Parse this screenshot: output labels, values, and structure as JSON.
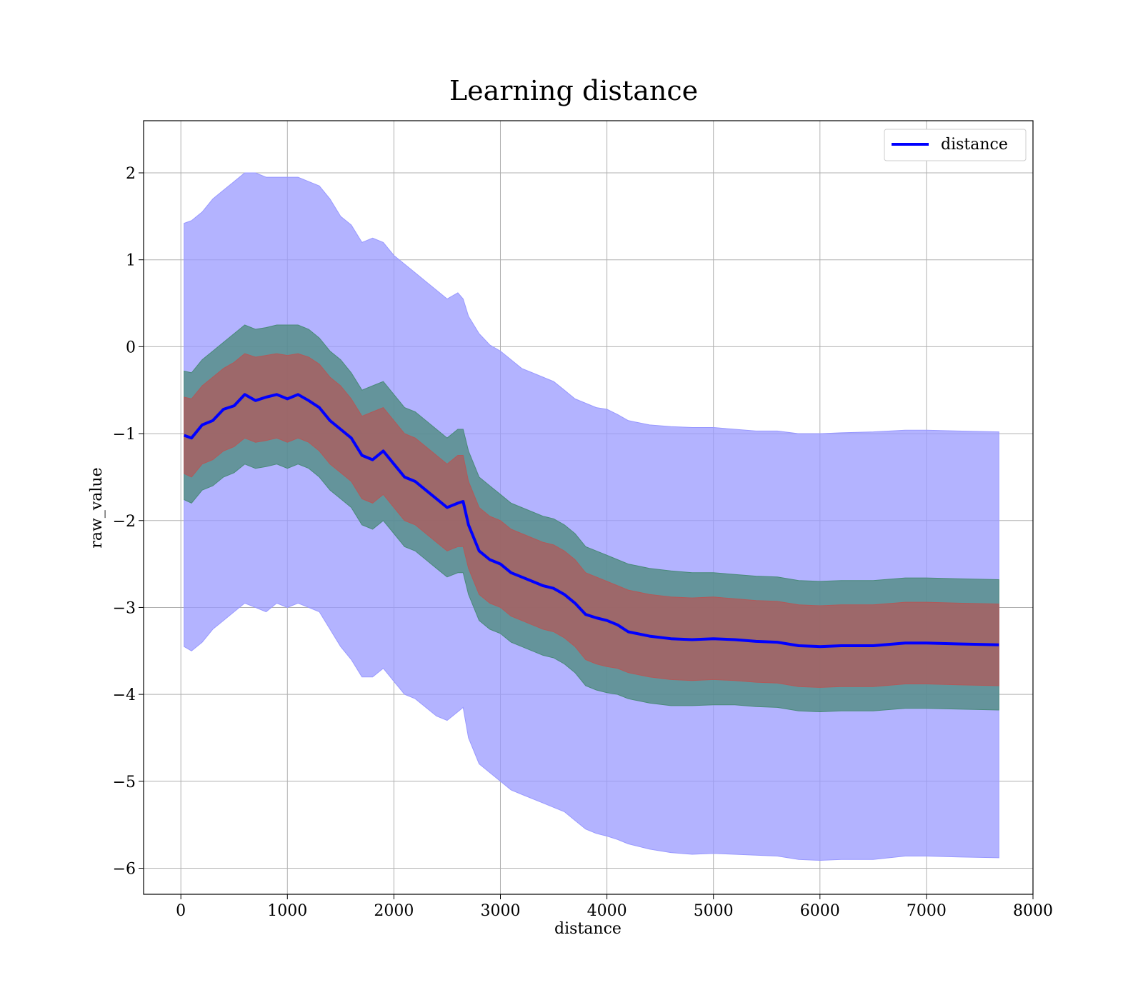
{
  "chart_data": {
    "type": "line",
    "title": "Learning distance",
    "xlabel": "distance",
    "ylabel": "raw_value",
    "xlim": [
      -350,
      8000
    ],
    "ylim": [
      -6.3,
      2.6
    ],
    "xticks": [
      0,
      1000,
      2000,
      3000,
      4000,
      5000,
      6000,
      7000,
      8000
    ],
    "xtick_labels": [
      "0",
      "1000",
      "2000",
      "3000",
      "4000",
      "5000",
      "6000",
      "7000",
      "8000"
    ],
    "yticks": [
      2,
      1,
      0,
      -1,
      -2,
      -3,
      -4,
      -5,
      -6
    ],
    "ytick_labels": [
      "2",
      "1",
      "0",
      "−1",
      "−2",
      "−3",
      "−4",
      "−5",
      "−6"
    ],
    "grid": true,
    "legend": {
      "position": "top-right",
      "entries": [
        {
          "label": "distance",
          "color": "#0000ff"
        }
      ]
    },
    "colors": {
      "line": "#0000ff",
      "outer_band": "#9999ff",
      "middle_band": "#4a8a7a",
      "inner_band": "#b05a5a"
    },
    "series": [
      {
        "name": "distance",
        "x": [
          30,
          100,
          200,
          300,
          400,
          500,
          600,
          700,
          800,
          900,
          1000,
          1100,
          1200,
          1300,
          1400,
          1500,
          1600,
          1700,
          1800,
          1900,
          2000,
          2100,
          2200,
          2300,
          2400,
          2500,
          2600,
          2650,
          2700,
          2800,
          2900,
          3000,
          3100,
          3200,
          3300,
          3400,
          3500,
          3600,
          3700,
          3800,
          3900,
          4000,
          4100,
          4200,
          4400,
          4600,
          4800,
          5000,
          5200,
          5400,
          5600,
          5800,
          6000,
          6200,
          6500,
          6800,
          7000,
          7300,
          7680
        ],
        "y": [
          -1.02,
          -1.05,
          -0.9,
          -0.85,
          -0.72,
          -0.68,
          -0.55,
          -0.62,
          -0.58,
          -0.55,
          -0.6,
          -0.55,
          -0.62,
          -0.7,
          -0.85,
          -0.95,
          -1.05,
          -1.25,
          -1.3,
          -1.2,
          -1.35,
          -1.5,
          -1.55,
          -1.65,
          -1.75,
          -1.85,
          -1.8,
          -1.78,
          -2.05,
          -2.35,
          -2.45,
          -2.5,
          -2.6,
          -2.65,
          -2.7,
          -2.75,
          -2.78,
          -2.85,
          -2.95,
          -3.08,
          -3.12,
          -3.15,
          -3.2,
          -3.28,
          -3.33,
          -3.36,
          -3.37,
          -3.36,
          -3.37,
          -3.39,
          -3.4,
          -3.44,
          -3.45,
          -3.44,
          -3.44,
          -3.41,
          -3.41,
          -3.42,
          -3.43
        ]
      }
    ],
    "bands": [
      {
        "level": "outer",
        "x": [
          30,
          100,
          200,
          300,
          400,
          500,
          600,
          700,
          800,
          900,
          1000,
          1100,
          1200,
          1300,
          1400,
          1500,
          1600,
          1700,
          1800,
          1900,
          2000,
          2100,
          2200,
          2300,
          2400,
          2500,
          2600,
          2650,
          2700,
          2800,
          2900,
          3000,
          3100,
          3200,
          3300,
          3400,
          3500,
          3600,
          3700,
          3800,
          3900,
          4000,
          4100,
          4200,
          4400,
          4600,
          4800,
          5000,
          5200,
          5400,
          5600,
          5800,
          6000,
          6200,
          6500,
          6800,
          7000,
          7300,
          7680
        ],
        "upper": [
          1.42,
          1.45,
          1.55,
          1.7,
          1.8,
          1.9,
          2.0,
          2.0,
          1.95,
          1.95,
          1.95,
          1.95,
          1.9,
          1.85,
          1.7,
          1.5,
          1.4,
          1.2,
          1.25,
          1.2,
          1.05,
          0.95,
          0.85,
          0.75,
          0.65,
          0.55,
          0.62,
          0.55,
          0.35,
          0.15,
          0.02,
          -0.05,
          -0.15,
          -0.25,
          -0.3,
          -0.35,
          -0.4,
          -0.5,
          -0.6,
          -0.65,
          -0.7,
          -0.72,
          -0.78,
          -0.85,
          -0.9,
          -0.92,
          -0.93,
          -0.93,
          -0.95,
          -0.97,
          -0.97,
          -1.0,
          -1.0,
          -0.99,
          -0.98,
          -0.96,
          -0.96,
          -0.97,
          -0.98
        ],
        "lower": [
          -3.45,
          -3.5,
          -3.4,
          -3.25,
          -3.15,
          -3.05,
          -2.95,
          -3.0,
          -3.05,
          -2.95,
          -3.0,
          -2.95,
          -3.0,
          -3.05,
          -3.25,
          -3.45,
          -3.6,
          -3.8,
          -3.8,
          -3.7,
          -3.85,
          -4.0,
          -4.05,
          -4.15,
          -4.25,
          -4.3,
          -4.2,
          -4.15,
          -4.5,
          -4.8,
          -4.9,
          -5.0,
          -5.1,
          -5.15,
          -5.2,
          -5.25,
          -5.3,
          -5.35,
          -5.45,
          -5.55,
          -5.6,
          -5.63,
          -5.67,
          -5.72,
          -5.78,
          -5.82,
          -5.84,
          -5.83,
          -5.84,
          -5.85,
          -5.86,
          -5.9,
          -5.91,
          -5.9,
          -5.9,
          -5.86,
          -5.86,
          -5.87,
          -5.88
        ]
      },
      {
        "level": "middle",
        "x": [
          30,
          100,
          200,
          300,
          400,
          500,
          600,
          700,
          800,
          900,
          1000,
          1100,
          1200,
          1300,
          1400,
          1500,
          1600,
          1700,
          1800,
          1900,
          2000,
          2100,
          2200,
          2300,
          2400,
          2500,
          2600,
          2650,
          2700,
          2800,
          2900,
          3000,
          3100,
          3200,
          3300,
          3400,
          3500,
          3600,
          3700,
          3800,
          3900,
          4000,
          4100,
          4200,
          4400,
          4600,
          4800,
          5000,
          5200,
          5400,
          5600,
          5800,
          6000,
          6200,
          6500,
          6800,
          7000,
          7300,
          7680
        ],
        "upper": [
          -0.28,
          -0.3,
          -0.15,
          -0.05,
          0.05,
          0.15,
          0.25,
          0.2,
          0.22,
          0.25,
          0.25,
          0.25,
          0.2,
          0.1,
          -0.05,
          -0.15,
          -0.3,
          -0.5,
          -0.45,
          -0.4,
          -0.55,
          -0.7,
          -0.75,
          -0.85,
          -0.95,
          -1.05,
          -0.95,
          -0.95,
          -1.2,
          -1.5,
          -1.6,
          -1.7,
          -1.8,
          -1.85,
          -1.9,
          -1.95,
          -1.98,
          -2.05,
          -2.15,
          -2.3,
          -2.35,
          -2.4,
          -2.45,
          -2.5,
          -2.55,
          -2.58,
          -2.6,
          -2.6,
          -2.62,
          -2.64,
          -2.65,
          -2.69,
          -2.7,
          -2.69,
          -2.69,
          -2.66,
          -2.66,
          -2.67,
          -2.68
        ],
        "lower": [
          -1.76,
          -1.8,
          -1.65,
          -1.6,
          -1.5,
          -1.45,
          -1.35,
          -1.4,
          -1.38,
          -1.35,
          -1.4,
          -1.35,
          -1.4,
          -1.5,
          -1.65,
          -1.75,
          -1.85,
          -2.05,
          -2.1,
          -2.0,
          -2.15,
          -2.3,
          -2.35,
          -2.45,
          -2.55,
          -2.65,
          -2.6,
          -2.6,
          -2.85,
          -3.15,
          -3.25,
          -3.3,
          -3.4,
          -3.45,
          -3.5,
          -3.55,
          -3.58,
          -3.65,
          -3.75,
          -3.9,
          -3.95,
          -3.98,
          -4.0,
          -4.05,
          -4.1,
          -4.13,
          -4.13,
          -4.12,
          -4.12,
          -4.14,
          -4.15,
          -4.19,
          -4.2,
          -4.19,
          -4.19,
          -4.16,
          -4.16,
          -4.17,
          -4.18
        ]
      },
      {
        "level": "inner",
        "x": [
          30,
          100,
          200,
          300,
          400,
          500,
          600,
          700,
          800,
          900,
          1000,
          1100,
          1200,
          1300,
          1400,
          1500,
          1600,
          1700,
          1800,
          1900,
          2000,
          2100,
          2200,
          2300,
          2400,
          2500,
          2600,
          2650,
          2700,
          2800,
          2900,
          3000,
          3100,
          3200,
          3300,
          3400,
          3500,
          3600,
          3700,
          3800,
          3900,
          4000,
          4100,
          4200,
          4400,
          4600,
          4800,
          5000,
          5200,
          5400,
          5600,
          5800,
          6000,
          6200,
          6500,
          6800,
          7000,
          7300,
          7680
        ],
        "upper": [
          -0.58,
          -0.6,
          -0.45,
          -0.35,
          -0.25,
          -0.18,
          -0.08,
          -0.12,
          -0.1,
          -0.08,
          -0.1,
          -0.08,
          -0.12,
          -0.2,
          -0.35,
          -0.45,
          -0.6,
          -0.8,
          -0.75,
          -0.7,
          -0.85,
          -1.0,
          -1.05,
          -1.15,
          -1.25,
          -1.35,
          -1.25,
          -1.25,
          -1.55,
          -1.85,
          -1.95,
          -2.0,
          -2.1,
          -2.15,
          -2.2,
          -2.25,
          -2.28,
          -2.35,
          -2.45,
          -2.6,
          -2.65,
          -2.7,
          -2.75,
          -2.8,
          -2.85,
          -2.88,
          -2.89,
          -2.88,
          -2.9,
          -2.92,
          -2.93,
          -2.97,
          -2.98,
          -2.97,
          -2.97,
          -2.94,
          -2.94,
          -2.95,
          -2.96
        ],
        "lower": [
          -1.46,
          -1.5,
          -1.35,
          -1.3,
          -1.2,
          -1.15,
          -1.05,
          -1.1,
          -1.08,
          -1.05,
          -1.1,
          -1.05,
          -1.1,
          -1.2,
          -1.35,
          -1.45,
          -1.55,
          -1.75,
          -1.8,
          -1.7,
          -1.85,
          -2.0,
          -2.05,
          -2.15,
          -2.25,
          -2.35,
          -2.3,
          -2.3,
          -2.55,
          -2.85,
          -2.95,
          -3.0,
          -3.1,
          -3.15,
          -3.2,
          -3.25,
          -3.28,
          -3.35,
          -3.45,
          -3.6,
          -3.65,
          -3.68,
          -3.7,
          -3.75,
          -3.8,
          -3.83,
          -3.84,
          -3.83,
          -3.84,
          -3.86,
          -3.87,
          -3.91,
          -3.92,
          -3.91,
          -3.91,
          -3.88,
          -3.88,
          -3.89,
          -3.9
        ]
      }
    ]
  }
}
